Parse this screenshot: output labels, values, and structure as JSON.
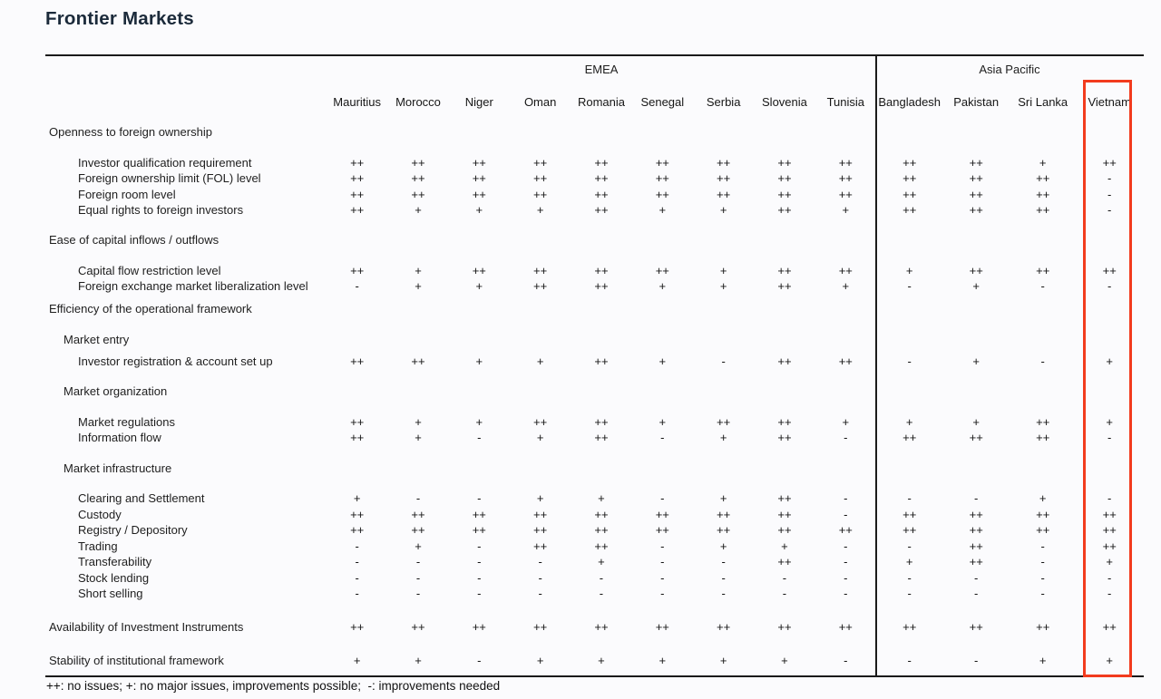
{
  "title": "Frontier Markets",
  "regions": [
    {
      "name": "EMEA",
      "columns": 9
    },
    {
      "name": "Asia Pacific",
      "columns": 4
    }
  ],
  "countries": [
    "Mauritius",
    "Morocco",
    "Niger",
    "Oman",
    "Romania",
    "Senegal",
    "Serbia",
    "Slovenia",
    "Tunisia",
    "Bangladesh",
    "Pakistan",
    "Sri Lanka",
    "Vietnam"
  ],
  "highlight": {
    "column": "Vietnam",
    "color": "#f23b1e"
  },
  "legend": "++: no issues; +: no major issues, improvements possible;  -: improvements needed",
  "chart_data": {
    "type": "table",
    "title": "Frontier Markets",
    "column_groups": {
      "EMEA": [
        "Mauritius",
        "Morocco",
        "Niger",
        "Oman",
        "Romania",
        "Senegal",
        "Serbia",
        "Slovenia",
        "Tunisia"
      ],
      "Asia Pacific": [
        "Bangladesh",
        "Pakistan",
        "Sri Lanka",
        "Vietnam"
      ]
    },
    "rating_scale": {
      "++": "no issues",
      "+": "no major issues, improvements possible",
      "-": "improvements needed"
    }
  },
  "rows": [
    {
      "label": "Openness to foreign ownership",
      "type": "section",
      "values": null
    },
    {
      "label": "Investor qualification requirement",
      "type": "detail",
      "values": [
        "++",
        "++",
        "++",
        "++",
        "++",
        "++",
        "++",
        "++",
        "++",
        "++",
        "++",
        "+",
        "++"
      ]
    },
    {
      "label": "Foreign ownership limit (FOL) level",
      "type": "detail",
      "values": [
        "++",
        "++",
        "++",
        "++",
        "++",
        "++",
        "++",
        "++",
        "++",
        "++",
        "++",
        "++",
        "-"
      ]
    },
    {
      "label": "Foreign room level",
      "type": "detail",
      "values": [
        "++",
        "++",
        "++",
        "++",
        "++",
        "++",
        "++",
        "++",
        "++",
        "++",
        "++",
        "++",
        "-"
      ]
    },
    {
      "label": "Equal rights to foreign investors",
      "type": "detail",
      "values": [
        "++",
        "+",
        "+",
        "+",
        "++",
        "+",
        "+",
        "++",
        "+",
        "++",
        "++",
        "++",
        "-"
      ]
    },
    {
      "label": "Ease of capital inflows / outflows",
      "type": "section",
      "values": null
    },
    {
      "label": "Capital flow restriction level",
      "type": "detail",
      "values": [
        "++",
        "+",
        "++",
        "++",
        "++",
        "++",
        "+",
        "++",
        "++",
        "+",
        "++",
        "++",
        "++"
      ]
    },
    {
      "label": "Foreign exchange market liberalization level",
      "type": "detail",
      "values": [
        "-",
        "+",
        "+",
        "++",
        "++",
        "+",
        "+",
        "++",
        "+",
        "-",
        "+",
        "-",
        "-"
      ]
    },
    {
      "label": "Efficiency of the operational framework",
      "type": "section",
      "spacing": "tight",
      "values": null
    },
    {
      "label": "Market entry",
      "type": "subsection",
      "values": null
    },
    {
      "label": "Investor registration & account set up",
      "type": "detail",
      "spacing": "tight",
      "values": [
        "++",
        "++",
        "+",
        "+",
        "++",
        "+",
        "-",
        "++",
        "++",
        "-",
        "+",
        "-",
        "+"
      ]
    },
    {
      "label": "Market organization",
      "type": "subsection",
      "values": null
    },
    {
      "label": "Market regulations",
      "type": "detail",
      "values": [
        "++",
        "+",
        "+",
        "++",
        "++",
        "+",
        "++",
        "++",
        "+",
        "+",
        "+",
        "++",
        "+"
      ]
    },
    {
      "label": "Information flow",
      "type": "detail",
      "values": [
        "++",
        "+",
        "-",
        "+",
        "++",
        "-",
        "+",
        "++",
        "-",
        "++",
        "++",
        "++",
        "-"
      ]
    },
    {
      "label": "Market infrastructure",
      "type": "subsection",
      "values": null
    },
    {
      "label": "Clearing and Settlement",
      "type": "detail",
      "values": [
        "+",
        "-",
        "-",
        "+",
        "+",
        "-",
        "+",
        "++",
        "-",
        "-",
        "-",
        "+",
        "-"
      ]
    },
    {
      "label": "Custody",
      "type": "detail",
      "values": [
        "++",
        "++",
        "++",
        "++",
        "++",
        "++",
        "++",
        "++",
        "-",
        "++",
        "++",
        "++",
        "++"
      ]
    },
    {
      "label": "Registry / Depository",
      "type": "detail",
      "values": [
        "++",
        "++",
        "++",
        "++",
        "++",
        "++",
        "++",
        "++",
        "++",
        "++",
        "++",
        "++",
        "++"
      ]
    },
    {
      "label": "Trading",
      "type": "detail",
      "values": [
        "-",
        "+",
        "-",
        "++",
        "++",
        "-",
        "+",
        "+",
        "-",
        "-",
        "++",
        "-",
        "++"
      ]
    },
    {
      "label": "Transferability",
      "type": "detail",
      "values": [
        "-",
        "-",
        "-",
        "-",
        "+",
        "-",
        "-",
        "++",
        "-",
        "+",
        "++",
        "-",
        "+"
      ]
    },
    {
      "label": "Stock lending",
      "type": "detail",
      "values": [
        "-",
        "-",
        "-",
        "-",
        "-",
        "-",
        "-",
        "-",
        "-",
        "-",
        "-",
        "-",
        "-"
      ]
    },
    {
      "label": "Short selling",
      "type": "detail",
      "values": [
        "-",
        "-",
        "-",
        "-",
        "-",
        "-",
        "-",
        "-",
        "-",
        "-",
        "-",
        "-",
        "-"
      ]
    },
    {
      "label": "Availability of Investment Instruments",
      "type": "total",
      "values": [
        "++",
        "++",
        "++",
        "++",
        "++",
        "++",
        "++",
        "++",
        "++",
        "++",
        "++",
        "++",
        "++"
      ]
    },
    {
      "label": "Stability of institutional framework",
      "type": "total",
      "values": [
        "+",
        "+",
        "-",
        "+",
        "+",
        "+",
        "+",
        "+",
        "-",
        "-",
        "-",
        "+",
        "+"
      ]
    }
  ]
}
